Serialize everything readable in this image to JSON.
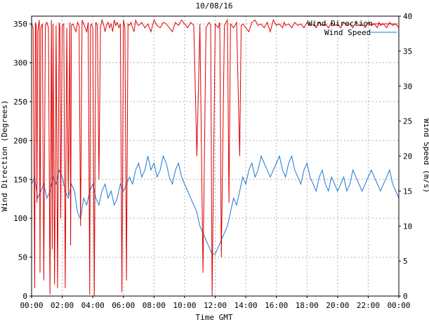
{
  "chart_data": {
    "type": "line",
    "title": "10/08/16",
    "xlabel": "Time GMT",
    "ylabel_left": "Wind Direction (Degrees)",
    "ylabel_right": "Wind Speed (m/s)",
    "xlim_hours": [
      0,
      24
    ],
    "x_tick_labels": [
      "00:00",
      "02:00",
      "04:00",
      "06:00",
      "08:00",
      "10:00",
      "12:00",
      "14:00",
      "16:00",
      "18:00",
      "20:00",
      "22:00",
      "00:00"
    ],
    "ylim_left": [
      0,
      360
    ],
    "y_ticks_left": [
      0,
      50,
      100,
      150,
      200,
      250,
      300,
      350
    ],
    "ylim_right": [
      0,
      40
    ],
    "y_ticks_right": [
      0,
      5,
      10,
      15,
      20,
      25,
      30,
      35,
      40
    ],
    "grid": true,
    "legend_position": "top-right",
    "series": [
      {
        "name": "Wind Direction",
        "axis": "left",
        "color": "#e00000",
        "x_hours": [
          0.0,
          0.1,
          0.2,
          0.25,
          0.3,
          0.35,
          0.4,
          0.5,
          0.55,
          0.6,
          0.7,
          0.8,
          0.9,
          1.0,
          1.1,
          1.2,
          1.3,
          1.35,
          1.4,
          1.5,
          1.6,
          1.7,
          1.8,
          1.85,
          1.9,
          2.0,
          2.1,
          2.2,
          2.3,
          2.4,
          2.5,
          2.55,
          2.6,
          2.7,
          2.8,
          2.9,
          3.0,
          3.1,
          3.2,
          3.3,
          3.4,
          3.5,
          3.6,
          3.7,
          3.8,
          3.85,
          3.9,
          4.0,
          4.1,
          4.2,
          4.3,
          4.4,
          4.5,
          4.6,
          4.7,
          4.8,
          4.9,
          5.0,
          5.1,
          5.2,
          5.3,
          5.4,
          5.5,
          5.6,
          5.7,
          5.8,
          5.9,
          6.0,
          6.1,
          6.2,
          6.3,
          6.4,
          6.5,
          6.6,
          6.7,
          6.8,
          6.9,
          7.0,
          7.2,
          7.4,
          7.6,
          7.8,
          8.0,
          8.2,
          8.4,
          8.6,
          8.8,
          9.0,
          9.2,
          9.4,
          9.6,
          9.8,
          10.0,
          10.2,
          10.4,
          10.6,
          10.8,
          11.0,
          11.2,
          11.4,
          11.6,
          11.7,
          11.8,
          12.0,
          12.2,
          12.3,
          12.4,
          12.6,
          12.8,
          12.9,
          13.0,
          13.2,
          13.4,
          13.6,
          13.7,
          13.8,
          14.0,
          14.2,
          14.4,
          14.6,
          14.8,
          15.0,
          15.2,
          15.4,
          15.6,
          15.8,
          16.0,
          16.2,
          16.4,
          16.5,
          16.6,
          16.8,
          17.0,
          17.2,
          17.4,
          17.6,
          17.8,
          18.0,
          18.2,
          18.4,
          18.6,
          18.8,
          19.0,
          19.2,
          19.4,
          19.6,
          19.8,
          20.0,
          20.2,
          20.4,
          20.6,
          20.8,
          21.0,
          21.2,
          21.4,
          21.6,
          21.8,
          22.0,
          22.2,
          22.4,
          22.6,
          22.7,
          22.8,
          23.0,
          23.2,
          23.4,
          23.6,
          23.8,
          24.0
        ],
        "values": [
          350,
          345,
          10,
          352,
          348,
          120,
          340,
          355,
          30,
          345,
          350,
          20,
          348,
          352,
          345,
          2,
          355,
          60,
          350,
          15,
          348,
          10,
          352,
          345,
          100,
          348,
          350,
          10,
          345,
          130,
          352,
          65,
          348,
          350,
          345,
          340,
          352,
          348,
          90,
          355,
          350,
          345,
          340,
          352,
          2,
          348,
          350,
          345,
          0,
          352,
          348,
          150,
          345,
          355,
          350,
          340,
          348,
          352,
          345,
          350,
          340,
          355,
          348,
          352,
          345,
          350,
          5,
          355,
          345,
          20,
          350,
          348,
          352,
          345,
          340,
          355,
          350,
          348,
          352,
          345,
          350,
          340,
          355,
          348,
          345,
          352,
          350,
          345,
          340,
          352,
          348,
          355,
          350,
          345,
          352,
          348,
          180,
          350,
          30,
          345,
          352,
          348,
          0,
          350,
          345,
          352,
          50,
          348,
          355,
          120,
          350,
          345,
          352,
          180,
          348,
          350,
          345,
          340,
          352,
          355,
          348,
          350,
          345,
          352,
          340,
          355,
          348,
          350,
          345,
          352,
          348,
          350,
          345,
          352,
          348,
          350,
          345,
          352,
          348,
          350,
          345,
          352,
          348,
          350,
          345,
          352,
          348,
          350,
          345,
          352,
          348,
          350,
          345,
          352,
          348,
          350,
          345,
          352,
          348,
          350,
          345,
          352,
          348,
          350,
          345,
          352,
          348,
          350,
          345
        ]
      },
      {
        "name": "Wind Speed",
        "axis": "right",
        "color": "#1e78d2",
        "x_hours": [
          0.0,
          0.2,
          0.4,
          0.6,
          0.8,
          1.0,
          1.2,
          1.4,
          1.6,
          1.8,
          2.0,
          2.2,
          2.4,
          2.6,
          2.8,
          3.0,
          3.2,
          3.4,
          3.6,
          3.8,
          4.0,
          4.2,
          4.4,
          4.6,
          4.8,
          5.0,
          5.2,
          5.4,
          5.6,
          5.8,
          6.0,
          6.2,
          6.4,
          6.6,
          6.8,
          7.0,
          7.2,
          7.4,
          7.6,
          7.8,
          8.0,
          8.2,
          8.4,
          8.6,
          8.8,
          9.0,
          9.2,
          9.4,
          9.6,
          9.8,
          10.0,
          10.2,
          10.4,
          10.6,
          10.8,
          11.0,
          11.2,
          11.4,
          11.6,
          11.8,
          12.0,
          12.2,
          12.4,
          12.6,
          12.8,
          13.0,
          13.2,
          13.4,
          13.6,
          13.8,
          14.0,
          14.2,
          14.4,
          14.6,
          14.8,
          15.0,
          15.2,
          15.4,
          15.6,
          15.8,
          16.0,
          16.2,
          16.4,
          16.6,
          16.8,
          17.0,
          17.2,
          17.4,
          17.6,
          17.8,
          18.0,
          18.2,
          18.4,
          18.6,
          18.8,
          19.0,
          19.2,
          19.4,
          19.6,
          19.8,
          20.0,
          20.2,
          20.4,
          20.6,
          20.8,
          21.0,
          21.2,
          21.4,
          21.6,
          21.8,
          22.0,
          22.2,
          22.4,
          22.6,
          22.8,
          23.0,
          23.2,
          23.4,
          23.6,
          23.8,
          24.0
        ],
        "values": [
          16,
          17,
          14,
          15,
          16,
          14,
          15,
          17,
          16,
          18,
          17,
          15,
          14,
          16,
          15,
          12,
          11,
          14,
          13,
          15,
          16,
          14,
          13,
          15,
          16,
          14,
          15,
          13,
          14,
          16,
          15,
          16,
          17,
          16,
          18,
          19,
          17,
          18,
          20,
          18,
          19,
          17,
          18,
          20,
          19,
          17,
          16,
          18,
          19,
          17,
          16,
          15,
          14,
          13,
          12,
          10,
          9,
          8,
          7,
          6,
          6,
          7,
          8,
          9,
          10,
          12,
          14,
          13,
          15,
          17,
          16,
          18,
          19,
          17,
          18,
          20,
          19,
          18,
          17,
          18,
          19,
          20,
          18,
          17,
          19,
          20,
          18,
          17,
          16,
          18,
          19,
          17,
          16,
          15,
          17,
          18,
          16,
          15,
          17,
          16,
          15,
          16,
          17,
          15,
          16,
          18,
          17,
          16,
          15,
          16,
          17,
          18,
          17,
          16,
          15,
          16,
          17,
          18,
          16,
          15,
          14
        ]
      }
    ]
  }
}
